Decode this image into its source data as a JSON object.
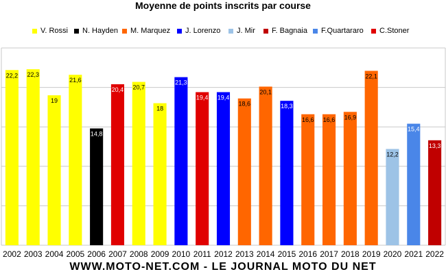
{
  "chart_data": {
    "type": "bar",
    "title": "Moyenne de points inscrits par course",
    "xlabel": "",
    "ylabel": "",
    "ylim": [
      0,
      25
    ],
    "grid": true,
    "legend_position": "top",
    "categories": [
      "2002",
      "2003",
      "2004",
      "2005",
      "2006",
      "2007",
      "2008",
      "2009",
      "2010",
      "2011",
      "2012",
      "2013",
      "2014",
      "2015",
      "2016",
      "2017",
      "2018",
      "2019",
      "2020",
      "2021",
      "2022"
    ],
    "values": [
      22.2,
      22.3,
      19,
      21.6,
      14.8,
      20.4,
      20.7,
      18,
      21.3,
      19.4,
      19.4,
      18.6,
      20.1,
      18.3,
      16.6,
      16.6,
      16.9,
      22.1,
      12.2,
      15.4,
      13.3
    ],
    "data_labels": [
      "22,2",
      "22,3",
      "19",
      "21,6",
      "14,8",
      "20,4",
      "20,7",
      "18",
      "21,3",
      "19,4",
      "19,4",
      "18,6",
      "20,1",
      "18,3",
      "16,6",
      "16,6",
      "16,9",
      "22,1",
      "12,2",
      "15,4",
      "13,3"
    ],
    "riders": [
      "V. Rossi",
      "V. Rossi",
      "V. Rossi",
      "V. Rossi",
      "N. Hayden",
      "C.Stoner",
      "V. Rossi",
      "V. Rossi",
      "J. Lorenzo",
      "C.Stoner",
      "J. Lorenzo",
      "M. Marquez",
      "M. Marquez",
      "J. Lorenzo",
      "M. Marquez",
      "M. Marquez",
      "M. Marquez",
      "M. Marquez",
      "J. Mir",
      "F.Quartararo",
      "F. Bagnaia"
    ],
    "legend": [
      {
        "name": "V. Rossi",
        "color": "#FFFF00",
        "text_color": "#000000"
      },
      {
        "name": "N. Hayden",
        "color": "#000000",
        "text_color": "#FFFFFF"
      },
      {
        "name": "M. Marquez",
        "color": "#FF6600",
        "text_color": "#000000"
      },
      {
        "name": "J. Lorenzo",
        "color": "#0000FF",
        "text_color": "#FFFFFF"
      },
      {
        "name": "J. Mir",
        "color": "#9DC3E6",
        "text_color": "#000000"
      },
      {
        "name": "F. Bagnaia",
        "color": "#C00000",
        "text_color": "#FFFFFF"
      },
      {
        "name": "F.Quartararo",
        "color": "#4A86E8",
        "text_color": "#FFFFFF"
      },
      {
        "name": "C.Stoner",
        "color": "#E00000",
        "text_color": "#FFFFFF"
      }
    ]
  },
  "footer": "WWW.MOTO-NET.COM - LE JOURNAL MOTO DU NET"
}
